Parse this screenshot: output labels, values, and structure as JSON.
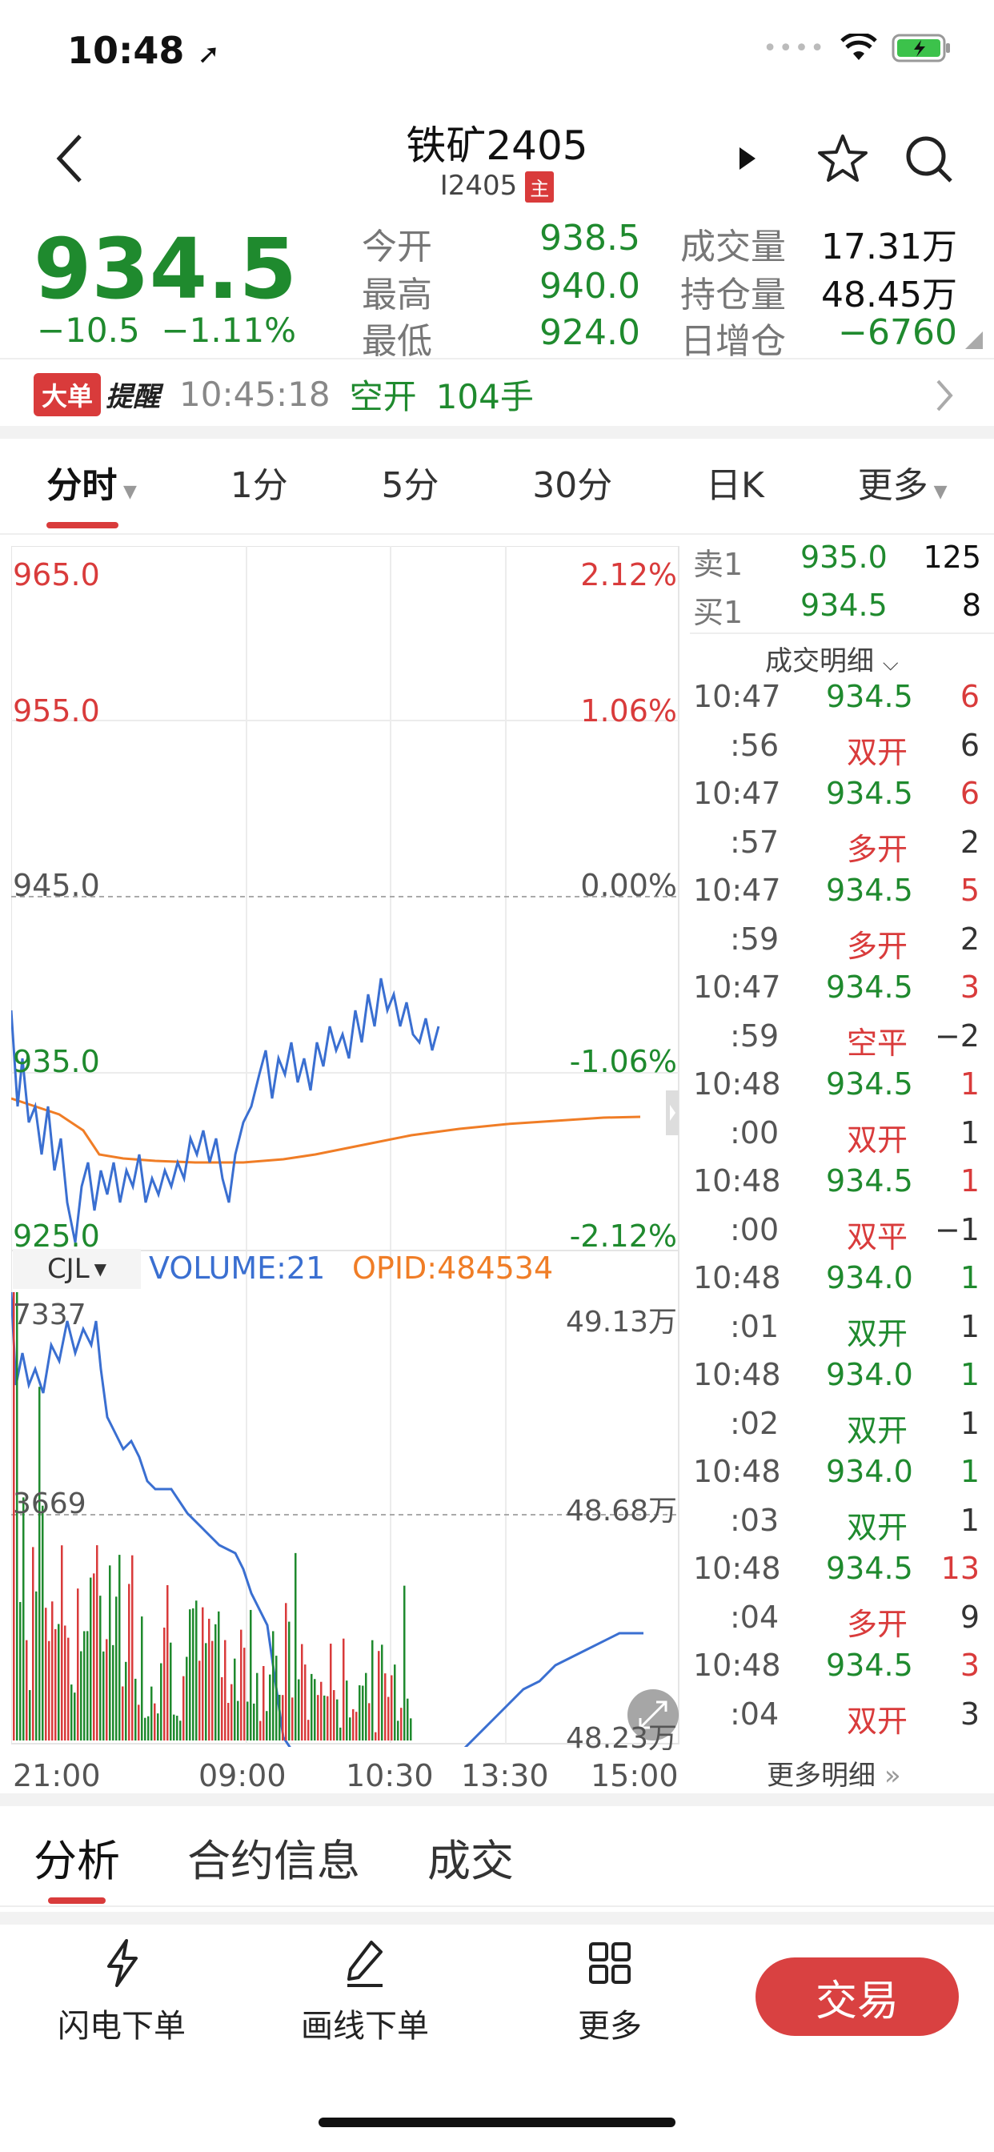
{
  "status": {
    "time": "10:48"
  },
  "nav": {
    "title": "铁矿2405",
    "subtitle": "I2405",
    "main_badge": "主"
  },
  "quote": {
    "price": "934.5",
    "change": "−10.5",
    "change_pct": "−1.11%",
    "stats": [
      {
        "label": "今开",
        "value": "938.5",
        "label2": "成交量",
        "value2": "17.31万"
      },
      {
        "label": "最高",
        "value": "940.0",
        "label2": "持仓量",
        "value2": "48.45万"
      },
      {
        "label": "最低",
        "value": "924.0",
        "label2": "日增仓",
        "value2": "−6760"
      }
    ]
  },
  "alert": {
    "tag": "大单",
    "remind": "提醒",
    "time": "10:45:18",
    "action": "空开",
    "qty": "104手"
  },
  "tabs": [
    "分时",
    "1分",
    "5分",
    "30分",
    "日K",
    "更多"
  ],
  "chart": {
    "price_levels": [
      {
        "left": "965.0",
        "right": "2.12%"
      },
      {
        "left": "955.0",
        "right": "1.06%"
      },
      {
        "left": "945.0",
        "right": "0.00%"
      },
      {
        "left": "935.0",
        "right": "-1.06%"
      },
      {
        "left": "925.0",
        "right": "-2.12%"
      }
    ],
    "indicator": {
      "name": "CJL",
      "volume": "VOLUME:21",
      "opid": "OPID:484534"
    },
    "vol_levels": [
      {
        "left": "7337",
        "right": "49.13万"
      },
      {
        "left": "3669",
        "right": "48.68万"
      },
      {
        "left": "",
        "right": "48.23万"
      }
    ],
    "time_axis": [
      "21:00",
      "09:00",
      "10:30",
      "13:30",
      "15:00"
    ]
  },
  "book": {
    "ask": {
      "label": "卖1",
      "price": "935.0",
      "qty": "125"
    },
    "bid": {
      "label": "买1",
      "price": "934.5",
      "qty": "8"
    },
    "detail_title": "成交明细",
    "more": "更多明细"
  },
  "trades": [
    {
      "time": "10:47",
      "sec": ":56",
      "price": "934.5",
      "vol": "6",
      "type": "双开",
      "oi": "6"
    },
    {
      "time": "10:47",
      "sec": ":57",
      "price": "934.5",
      "vol": "6",
      "type": "多开",
      "oi": "2"
    },
    {
      "time": "10:47",
      "sec": ":59",
      "price": "934.5",
      "vol": "5",
      "type": "多开",
      "oi": "2"
    },
    {
      "time": "10:47",
      "sec": ":59",
      "price": "934.5",
      "vol": "3",
      "type": "空平",
      "oi": "−2"
    },
    {
      "time": "10:48",
      "sec": ":00",
      "price": "934.5",
      "vol": "1",
      "type": "双开",
      "oi": "1"
    },
    {
      "time": "10:48",
      "sec": ":00",
      "price": "934.5",
      "vol": "1",
      "type": "双平",
      "oi": "−1"
    },
    {
      "time": "10:48",
      "sec": ":01",
      "price": "934.0",
      "vol": "1",
      "type": "双开",
      "oi": "1"
    },
    {
      "time": "10:48",
      "sec": ":02",
      "price": "934.0",
      "vol": "1",
      "type": "双开",
      "oi": "1"
    },
    {
      "time": "10:48",
      "sec": ":03",
      "price": "934.0",
      "vol": "1",
      "type": "双开",
      "oi": "1"
    },
    {
      "time": "10:48",
      "sec": ":04",
      "price": "934.5",
      "vol": "13",
      "type": "多开",
      "oi": "9"
    },
    {
      "time": "10:48",
      "sec": ":04",
      "price": "934.5",
      "vol": "3",
      "type": "双开",
      "oi": "3"
    }
  ],
  "bottom_tabs": [
    "分析",
    "合约信息",
    "成交"
  ],
  "toolbar": {
    "flash": "闪电下单",
    "draw": "画线下单",
    "more": "更多",
    "trade": "交易"
  },
  "colors": {
    "up": "#d93b3b",
    "down": "#1f8a2e",
    "accent": "#d94141",
    "price_line": "#3a6fd1",
    "avg_line": "#f07d26"
  }
}
